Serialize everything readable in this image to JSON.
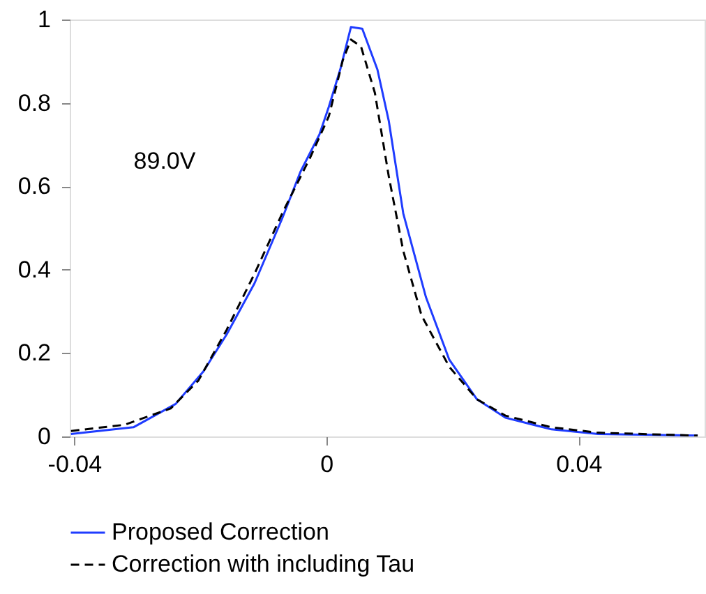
{
  "chart_data": {
    "type": "line",
    "xlim": [
      -0.0407,
      0.06
    ],
    "ylim": [
      0,
      1
    ],
    "xticks": [
      -0.04,
      0,
      0.04
    ],
    "yticks": [
      0,
      0.2,
      0.4,
      0.6,
      0.8,
      1
    ],
    "grid": false,
    "legend": "bottom",
    "annotations": [
      "89.0V"
    ],
    "series": [
      {
        "name": "Proposed Correction",
        "color": "#1f3cff",
        "line_style": "solid",
        "x": [
          -0.0405,
          -0.0306,
          -0.0239,
          -0.0195,
          -0.0158,
          -0.0114,
          -0.007,
          -0.0041,
          -0.0011,
          0.0004,
          0.0022,
          0.0039,
          0.0057,
          0.0081,
          0.0099,
          0.0122,
          0.0158,
          0.0195,
          0.0239,
          0.0284,
          0.0357,
          0.0431,
          0.0589
        ],
        "values": [
          0.006,
          0.022,
          0.078,
          0.156,
          0.245,
          0.367,
          0.523,
          0.635,
          0.724,
          0.791,
          0.88,
          0.982,
          0.978,
          0.88,
          0.757,
          0.535,
          0.334,
          0.184,
          0.089,
          0.045,
          0.017,
          0.006,
          0.002
        ]
      },
      {
        "name": "Correction with including Tau",
        "color": "#000000",
        "line_style": "dashed",
        "x": [
          -0.0405,
          -0.032,
          -0.0247,
          -0.0203,
          -0.0158,
          -0.0114,
          -0.007,
          -0.0026,
          0.0004,
          0.0026,
          0.0039,
          0.0055,
          0.0077,
          0.0099,
          0.0122,
          0.0151,
          0.0195,
          0.0239,
          0.0284,
          0.0357,
          0.0431,
          0.0589
        ],
        "values": [
          0.013,
          0.028,
          0.067,
          0.134,
          0.256,
          0.39,
          0.535,
          0.668,
          0.768,
          0.902,
          0.952,
          0.935,
          0.824,
          0.624,
          0.445,
          0.29,
          0.167,
          0.089,
          0.05,
          0.022,
          0.009,
          0.002
        ]
      }
    ]
  }
}
